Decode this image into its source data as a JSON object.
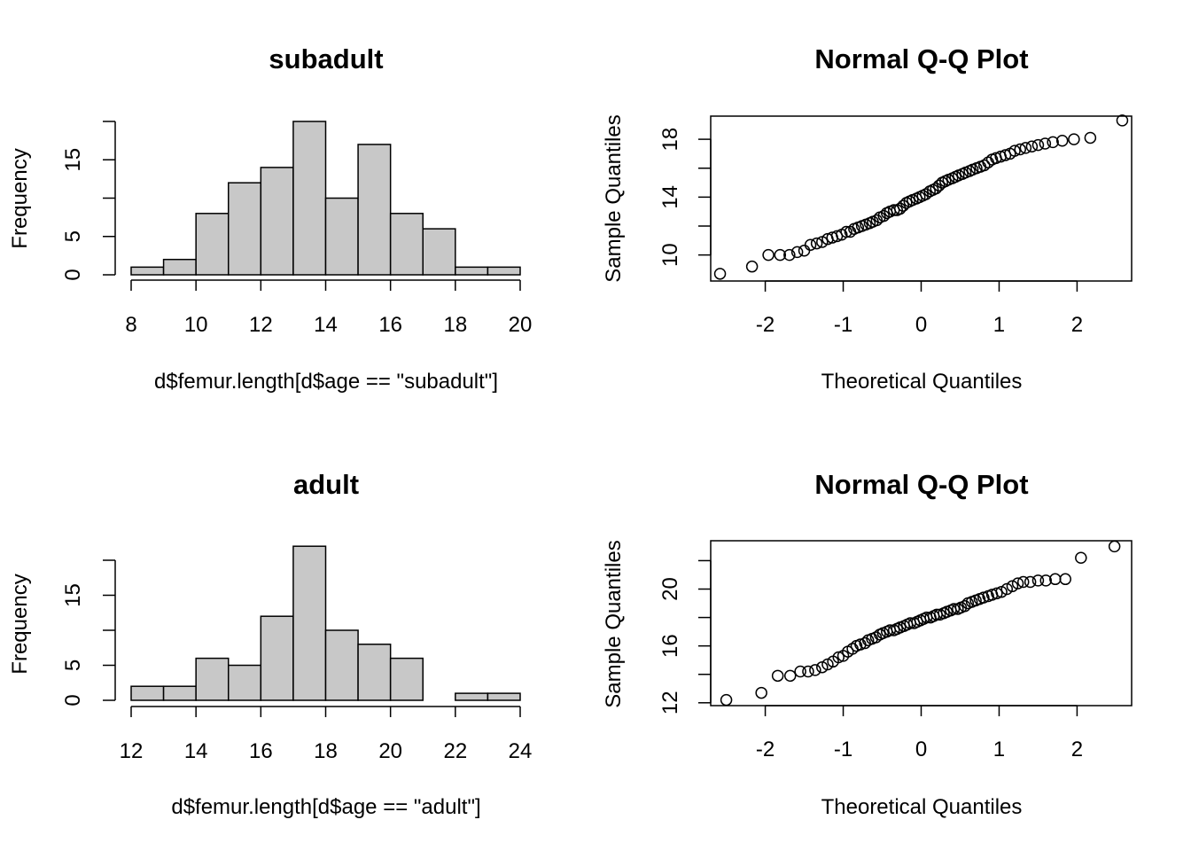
{
  "chart_data": [
    {
      "type": "bar",
      "subtype": "histogram",
      "title": "subadult",
      "xlabel": "d$femur.length[d$age == \"subadult\"]",
      "ylabel": "Frequency",
      "bin_edges": [
        8,
        9,
        10,
        11,
        12,
        13,
        14,
        15,
        16,
        17,
        18,
        19,
        20
      ],
      "values": [
        1,
        2,
        8,
        12,
        14,
        20,
        10,
        17,
        8,
        6,
        1,
        1
      ],
      "xlim": [
        8,
        20
      ],
      "ylim": [
        0,
        20
      ],
      "xticks": [
        "8",
        "10",
        "12",
        "14",
        "16",
        "18",
        "20"
      ],
      "yticks": [
        "0",
        "5",
        "15"
      ],
      "bar_color": "#c8c8c8"
    },
    {
      "type": "scatter",
      "title": "Normal Q-Q Plot",
      "xlabel": "Theoretical Quantiles",
      "ylabel": "Sample Quantiles",
      "xlim": [
        -2.7,
        2.7
      ],
      "ylim": [
        8.2,
        19.6
      ],
      "xticks": [
        "-2",
        "-1",
        "0",
        "1",
        "2"
      ],
      "yticks": [
        "10",
        "14",
        "18"
      ],
      "x": [
        -2.58,
        -2.17,
        -1.96,
        -1.81,
        -1.69,
        -1.59,
        -1.5,
        -1.42,
        -1.34,
        -1.27,
        -1.2,
        -1.14,
        -1.08,
        -1.02,
        -0.96,
        -0.91,
        -0.86,
        -0.81,
        -0.76,
        -0.71,
        -0.66,
        -0.62,
        -0.57,
        -0.53,
        -0.48,
        -0.44,
        -0.4,
        -0.35,
        -0.31,
        -0.27,
        -0.23,
        -0.19,
        -0.15,
        -0.11,
        -0.06,
        -0.02,
        0.02,
        0.06,
        0.11,
        0.15,
        0.19,
        0.23,
        0.27,
        0.31,
        0.35,
        0.4,
        0.44,
        0.48,
        0.53,
        0.57,
        0.62,
        0.66,
        0.71,
        0.76,
        0.81,
        0.86,
        0.91,
        0.96,
        1.02,
        1.08,
        1.14,
        1.2,
        1.27,
        1.34,
        1.42,
        1.5,
        1.59,
        1.69,
        1.81,
        1.96,
        2.17,
        2.58
      ],
      "y": [
        8.7,
        9.2,
        10.0,
        10.0,
        10.0,
        10.2,
        10.3,
        10.7,
        10.8,
        10.9,
        11.1,
        11.2,
        11.3,
        11.4,
        11.6,
        11.6,
        11.8,
        11.9,
        12.0,
        12.1,
        12.2,
        12.3,
        12.4,
        12.6,
        12.7,
        12.9,
        13.0,
        13.1,
        13.1,
        13.2,
        13.4,
        13.6,
        13.7,
        13.8,
        13.9,
        14.0,
        14.1,
        14.2,
        14.4,
        14.5,
        14.6,
        14.8,
        15.0,
        15.1,
        15.2,
        15.3,
        15.4,
        15.5,
        15.6,
        15.7,
        15.8,
        15.9,
        16.0,
        16.1,
        16.2,
        16.4,
        16.6,
        16.7,
        16.8,
        16.9,
        17.0,
        17.2,
        17.3,
        17.4,
        17.5,
        17.6,
        17.7,
        17.8,
        17.9,
        18.0,
        18.1,
        19.3
      ]
    },
    {
      "type": "bar",
      "subtype": "histogram",
      "title": "adult",
      "xlabel": "d$femur.length[d$age == \"adult\"]",
      "ylabel": "Frequency",
      "bin_edges": [
        12,
        13,
        14,
        15,
        16,
        17,
        18,
        19,
        20,
        21,
        22,
        23,
        24
      ],
      "values": [
        2,
        2,
        6,
        5,
        12,
        22,
        10,
        8,
        6,
        0,
        1,
        1
      ],
      "xlim": [
        12,
        24
      ],
      "ylim": [
        0,
        20
      ],
      "xticks": [
        "12",
        "14",
        "16",
        "18",
        "20",
        "22",
        "24"
      ],
      "yticks": [
        "0",
        "5",
        "15"
      ],
      "bar_color": "#c8c8c8"
    },
    {
      "type": "scatter",
      "title": "Normal Q-Q Plot",
      "xlabel": "Theoretical Quantiles",
      "ylabel": "Sample Quantiles",
      "xlim": [
        -2.7,
        2.7
      ],
      "ylim": [
        11.8,
        23.4
      ],
      "xticks": [
        "-2",
        "-1",
        "0",
        "1",
        "2"
      ],
      "yticks": [
        "12",
        "16",
        "20"
      ],
      "x": [
        -2.5,
        -2.05,
        -1.84,
        -1.68,
        -1.55,
        -1.45,
        -1.36,
        -1.27,
        -1.2,
        -1.13,
        -1.06,
        -1.0,
        -0.94,
        -0.88,
        -0.83,
        -0.78,
        -0.72,
        -0.68,
        -0.63,
        -0.58,
        -0.53,
        -0.49,
        -0.44,
        -0.4,
        -0.35,
        -0.31,
        -0.27,
        -0.22,
        -0.18,
        -0.14,
        -0.09,
        -0.05,
        -0.01,
        0.03,
        0.07,
        0.12,
        0.16,
        0.2,
        0.24,
        0.29,
        0.33,
        0.38,
        0.42,
        0.47,
        0.51,
        0.56,
        0.6,
        0.65,
        0.7,
        0.75,
        0.8,
        0.86,
        0.91,
        0.97,
        1.03,
        1.1,
        1.17,
        1.24,
        1.31,
        1.4,
        1.5,
        1.6,
        1.72,
        1.85,
        2.05,
        2.48
      ],
      "y": [
        12.2,
        12.7,
        13.9,
        13.9,
        14.2,
        14.2,
        14.3,
        14.5,
        14.7,
        14.9,
        15.2,
        15.3,
        15.6,
        15.8,
        16.0,
        16.1,
        16.2,
        16.4,
        16.5,
        16.6,
        16.8,
        16.9,
        17.0,
        17.1,
        17.1,
        17.2,
        17.3,
        17.4,
        17.5,
        17.6,
        17.6,
        17.7,
        17.8,
        17.9,
        18.0,
        18.0,
        18.1,
        18.2,
        18.2,
        18.3,
        18.4,
        18.5,
        18.6,
        18.6,
        18.7,
        18.8,
        19.0,
        19.1,
        19.2,
        19.3,
        19.4,
        19.5,
        19.6,
        19.7,
        19.8,
        20.0,
        20.2,
        20.4,
        20.5,
        20.5,
        20.6,
        20.6,
        20.7,
        20.7,
        22.2,
        23.0
      ]
    }
  ]
}
